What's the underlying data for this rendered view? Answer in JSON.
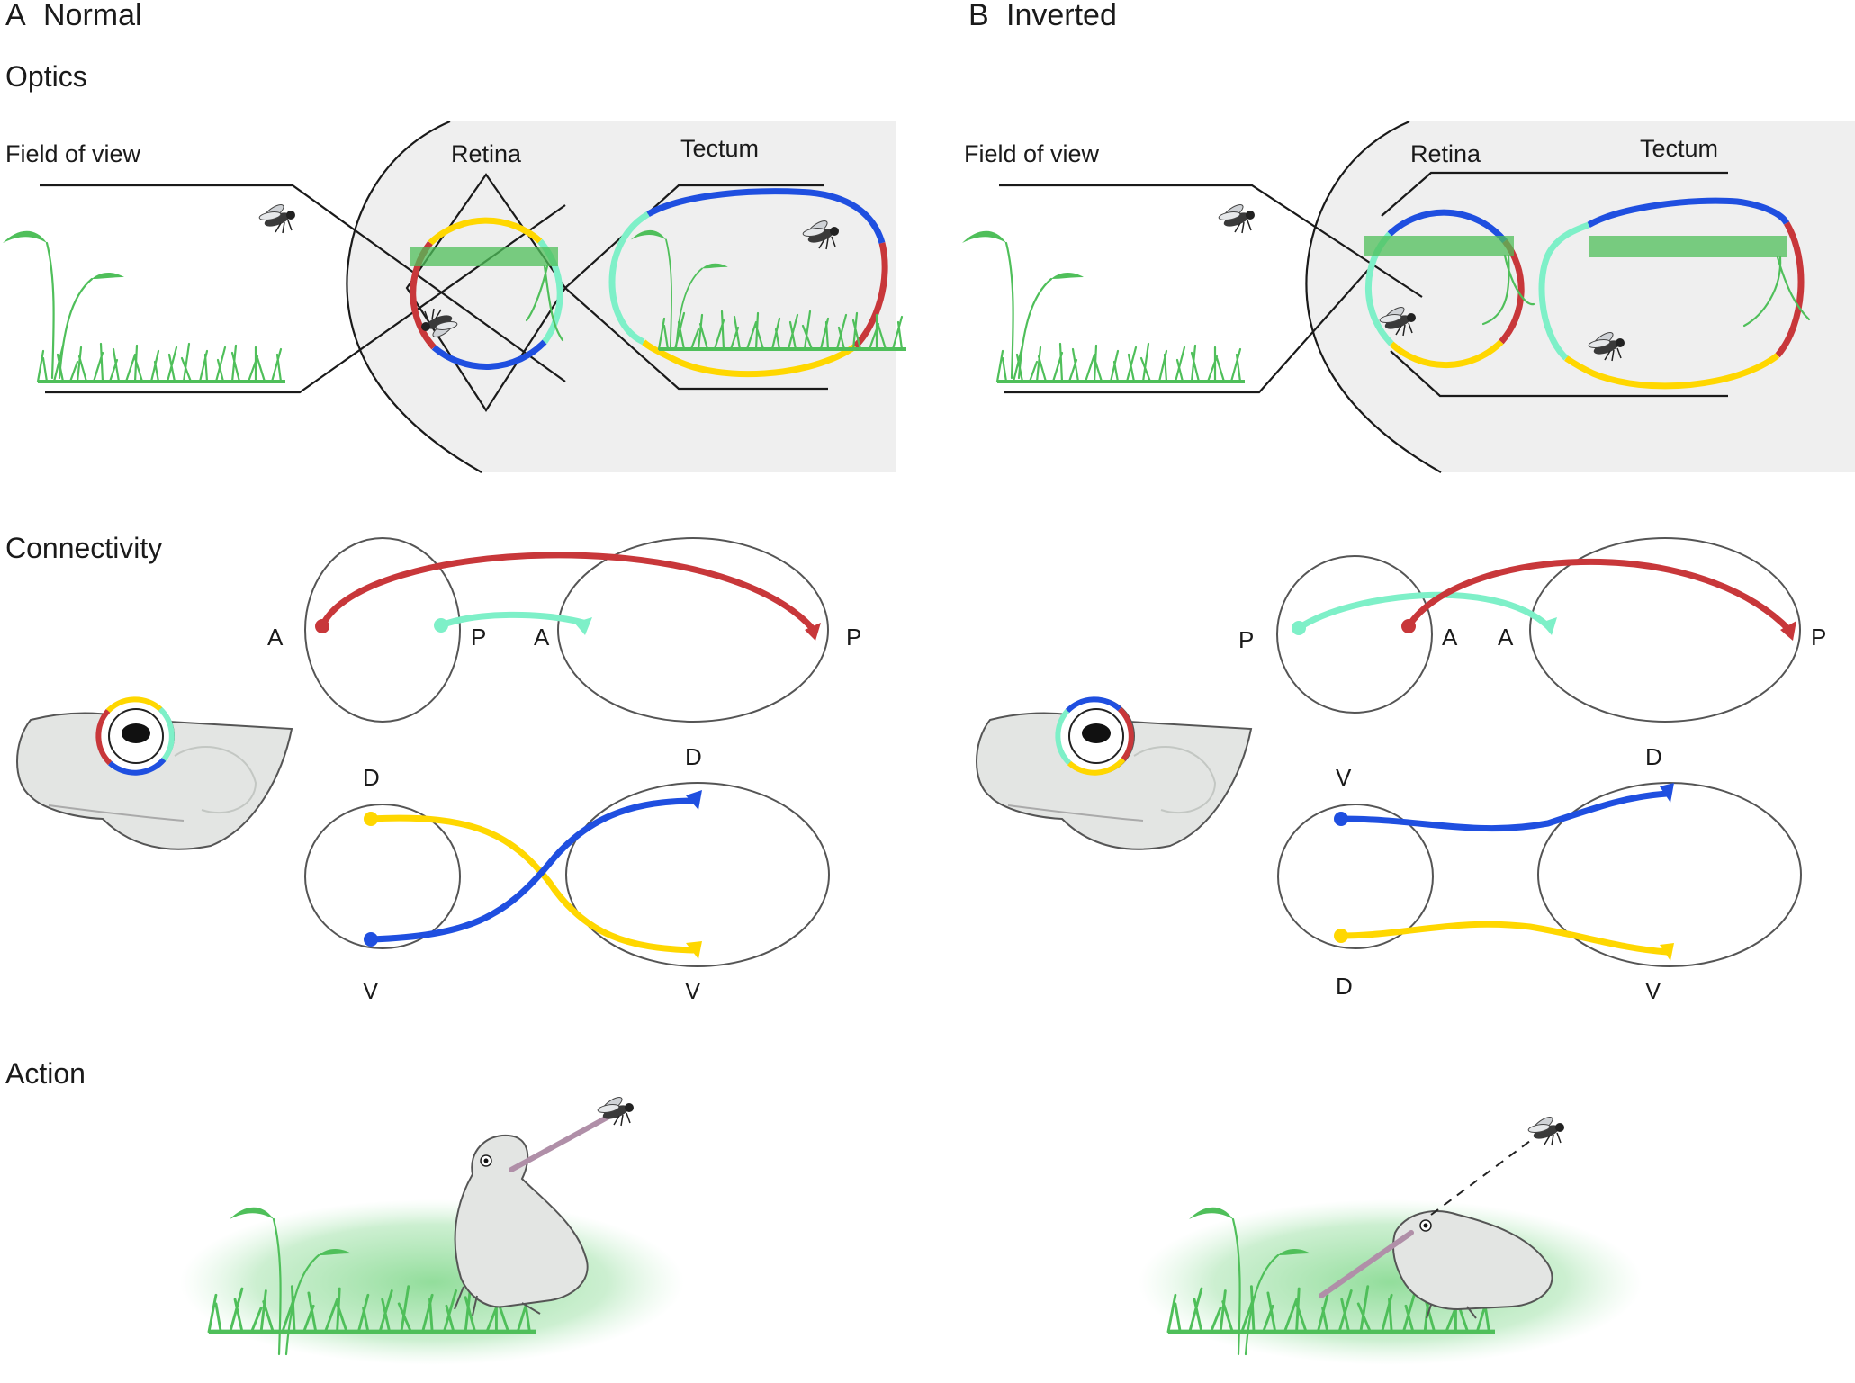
{
  "panels": {
    "a": {
      "letter": "A",
      "title": "Normal"
    },
    "b": {
      "letter": "B",
      "title": "Inverted"
    }
  },
  "sections": {
    "optics": "Optics",
    "connectivity": "Connectivity",
    "action": "Action"
  },
  "labels": {
    "field_of_view": "Field of view",
    "retina": "Retina",
    "tectum": "Tectum"
  },
  "axes": {
    "a_ap": {
      "retina_anterior": "A",
      "retina_posterior": "P",
      "tectum_anterior": "A",
      "tectum_posterior": "P"
    },
    "a_dv": {
      "retina_dorsal": "D",
      "retina_ventral": "V",
      "tectum_dorsal": "D",
      "tectum_ventral": "V"
    },
    "b_ap": {
      "retina_left": "P",
      "retina_right": "A",
      "tectum_anterior": "A",
      "tectum_posterior": "P"
    },
    "b_dv": {
      "retina_top": "V",
      "retina_bottom": "D",
      "tectum_dorsal": "D",
      "tectum_ventral": "V"
    }
  },
  "colors": {
    "anterior": "#c8373a",
    "posterior": "#7ef0c8",
    "dorsal": "#ffd700",
    "ventral": "#1f4fe0",
    "grass": "#4fbf5a",
    "panel_bg": "#efefef"
  },
  "icons": [
    "fly-icon",
    "plant-icon",
    "frog-icon",
    "tongue-icon"
  ]
}
